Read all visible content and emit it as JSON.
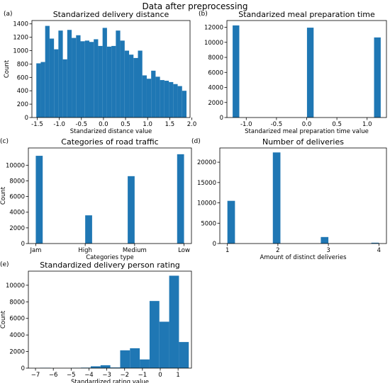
{
  "figure_title": "Data after preprocessing",
  "bar_color": "#1f77b4",
  "chart_data": [
    {
      "panel": "(a)",
      "type": "bar",
      "title": "Standarized delivery distance",
      "xlabel": "Standarized distance value",
      "ylabel": "Count",
      "xlim": [
        -1.62,
        1.96
      ],
      "ylim": [
        0,
        1450
      ],
      "xticks": [
        -1.5,
        -1.0,
        -0.5,
        0.0,
        0.5,
        1.0,
        1.5,
        2.0
      ],
      "xtick_labels": [
        "-1.5",
        "-1.0",
        "-0.5",
        "0.0",
        "0.5",
        "1.0",
        "1.5",
        "2.0"
      ],
      "yticks": [
        0,
        200,
        400,
        600,
        800,
        1000,
        1200,
        1400
      ],
      "ytick_labels": [
        "0",
        "200",
        "400",
        "600",
        "800",
        "1000",
        "1200",
        "1400"
      ],
      "bars": [
        {
          "x0": -1.52,
          "x1": -1.42,
          "value": 810
        },
        {
          "x0": -1.42,
          "x1": -1.32,
          "value": 830
        },
        {
          "x0": -1.32,
          "x1": -1.22,
          "value": 1370
        },
        {
          "x0": -1.22,
          "x1": -1.12,
          "value": 1180
        },
        {
          "x0": -1.12,
          "x1": -1.02,
          "value": 1020
        },
        {
          "x0": -1.02,
          "x1": -0.92,
          "value": 1300
        },
        {
          "x0": -0.92,
          "x1": -0.82,
          "value": 870
        },
        {
          "x0": -0.82,
          "x1": -0.72,
          "value": 1310
        },
        {
          "x0": -0.72,
          "x1": -0.62,
          "value": 1190
        },
        {
          "x0": -0.62,
          "x1": -0.52,
          "value": 1230
        },
        {
          "x0": -0.52,
          "x1": -0.42,
          "value": 1140
        },
        {
          "x0": -0.42,
          "x1": -0.32,
          "value": 1150
        },
        {
          "x0": -0.32,
          "x1": -0.22,
          "value": 1130
        },
        {
          "x0": -0.22,
          "x1": -0.12,
          "value": 1170
        },
        {
          "x0": -0.12,
          "x1": -0.02,
          "value": 1070
        },
        {
          "x0": -0.02,
          "x1": 0.08,
          "value": 1340
        },
        {
          "x0": 0.08,
          "x1": 0.18,
          "value": 1060
        },
        {
          "x0": 0.18,
          "x1": 0.28,
          "value": 1070
        },
        {
          "x0": 0.28,
          "x1": 0.38,
          "value": 1300
        },
        {
          "x0": 0.38,
          "x1": 0.48,
          "value": 1150
        },
        {
          "x0": 0.48,
          "x1": 0.58,
          "value": 1000
        },
        {
          "x0": 0.58,
          "x1": 0.68,
          "value": 940
        },
        {
          "x0": 0.68,
          "x1": 0.78,
          "value": 890
        },
        {
          "x0": 0.78,
          "x1": 0.88,
          "value": 1000
        },
        {
          "x0": 0.88,
          "x1": 0.98,
          "value": 630
        },
        {
          "x0": 0.98,
          "x1": 1.08,
          "value": 580
        },
        {
          "x0": 1.08,
          "x1": 1.18,
          "value": 700
        },
        {
          "x0": 1.18,
          "x1": 1.28,
          "value": 610
        },
        {
          "x0": 1.28,
          "x1": 1.38,
          "value": 560
        },
        {
          "x0": 1.38,
          "x1": 1.48,
          "value": 550
        },
        {
          "x0": 1.48,
          "x1": 1.58,
          "value": 530
        },
        {
          "x0": 1.58,
          "x1": 1.68,
          "value": 500
        },
        {
          "x0": 1.68,
          "x1": 1.78,
          "value": 470
        },
        {
          "x0": 1.78,
          "x1": 1.88,
          "value": 400
        }
      ]
    },
    {
      "panel": "(b)",
      "type": "bar",
      "title": "Standarized meal preparation time",
      "xlabel": "Standarized meal preparation time value",
      "ylabel": "",
      "xlim": [
        -1.32,
        1.32
      ],
      "ylim": [
        0,
        12900
      ],
      "xticks": [
        -1.0,
        -0.5,
        0.0,
        0.5,
        1.0
      ],
      "xtick_labels": [
        "-1.0",
        "-0.5",
        "0.0",
        "0.5",
        "1.0"
      ],
      "yticks": [
        0,
        2000,
        4000,
        6000,
        8000,
        10000,
        12000
      ],
      "ytick_labels": [
        "0",
        "2000",
        "4000",
        "6000",
        "8000",
        "10000",
        "12000"
      ],
      "bars": [
        {
          "x0": -1.225,
          "x1": -1.115,
          "value": 12250
        },
        {
          "x0": 0.005,
          "x1": 0.115,
          "value": 11950
        },
        {
          "x0": 1.115,
          "x1": 1.225,
          "value": 10650
        }
      ]
    },
    {
      "panel": "(c)",
      "type": "bar",
      "title": "Categories of road traffic",
      "xlabel": "Categories type",
      "ylabel": "Count",
      "xlim": [
        -0.15,
        3.15
      ],
      "ylim": [
        0,
        12200
      ],
      "xticks": [
        0,
        1,
        2,
        3
      ],
      "xtick_labels": [
        "Jam",
        "High",
        "Medium",
        "Low"
      ],
      "yticks": [
        0,
        2000,
        4000,
        6000,
        8000,
        10000
      ],
      "ytick_labels": [
        "0",
        "2000",
        "4000",
        "6000",
        "8000",
        "10000"
      ],
      "bars": [
        {
          "x0": 0.0,
          "x1": 0.14,
          "value": 11200
        },
        {
          "x0": 1.0,
          "x1": 1.14,
          "value": 3600
        },
        {
          "x0": 1.86,
          "x1": 2.0,
          "value": 8600
        },
        {
          "x0": 2.86,
          "x1": 3.0,
          "value": 11400
        }
      ]
    },
    {
      "panel": "(d)",
      "type": "bar",
      "title": "Number of deliveries",
      "xlabel": "Amount of distinct deliveries",
      "ylabel": "",
      "xlim": [
        0.85,
        4.15
      ],
      "ylim": [
        0,
        23500
      ],
      "xticks": [
        1,
        2,
        3,
        4
      ],
      "xtick_labels": [
        "1",
        "2",
        "3",
        "4"
      ],
      "yticks": [
        0,
        5000,
        10000,
        15000,
        20000
      ],
      "ytick_labels": [
        "0",
        "5000",
        "10000",
        "15000",
        "20000"
      ],
      "bars": [
        {
          "x0": 1.0,
          "x1": 1.15,
          "value": 10500
        },
        {
          "x0": 1.9,
          "x1": 2.05,
          "value": 22400
        },
        {
          "x0": 2.85,
          "x1": 3.0,
          "value": 1600
        },
        {
          "x0": 3.85,
          "x1": 4.0,
          "value": 200
        }
      ]
    },
    {
      "panel": "(e)",
      "type": "bar",
      "title": "Standardized delivery person rating",
      "xlabel": "Standardized rating value",
      "ylabel": "Count",
      "xlim": [
        -7.4,
        1.75
      ],
      "ylim": [
        0,
        11700
      ],
      "xticks": [
        -7,
        -6,
        -5,
        -4,
        -3,
        -2,
        -1,
        0,
        1
      ],
      "xtick_labels": [
        "−7",
        "−6",
        "−5",
        "−4",
        "−3",
        "−2",
        "−1",
        "0",
        "1"
      ],
      "yticks": [
        0,
        2000,
        4000,
        6000,
        8000,
        10000
      ],
      "ytick_labels": [
        "0",
        "2000",
        "4000",
        "6000",
        "8000",
        "10000"
      ],
      "bars": [
        {
          "x0": -6.75,
          "x1": -6.15,
          "value": 40
        },
        {
          "x0": -5.0,
          "x1": -4.45,
          "value": 30
        },
        {
          "x0": -4.45,
          "x1": -3.9,
          "value": 60
        },
        {
          "x0": -3.9,
          "x1": -3.35,
          "value": 220
        },
        {
          "x0": -3.35,
          "x1": -2.8,
          "value": 350
        },
        {
          "x0": -2.8,
          "x1": -2.25,
          "value": 80
        },
        {
          "x0": -2.25,
          "x1": -1.7,
          "value": 2150
        },
        {
          "x0": -1.7,
          "x1": -1.15,
          "value": 2400
        },
        {
          "x0": -1.15,
          "x1": -0.6,
          "value": 1050
        },
        {
          "x0": -0.6,
          "x1": -0.05,
          "value": 8100
        },
        {
          "x0": -0.05,
          "x1": 0.5,
          "value": 5600
        },
        {
          "x0": 0.5,
          "x1": 1.05,
          "value": 11150
        },
        {
          "x0": 1.05,
          "x1": 1.6,
          "value": 3150
        }
      ]
    }
  ]
}
